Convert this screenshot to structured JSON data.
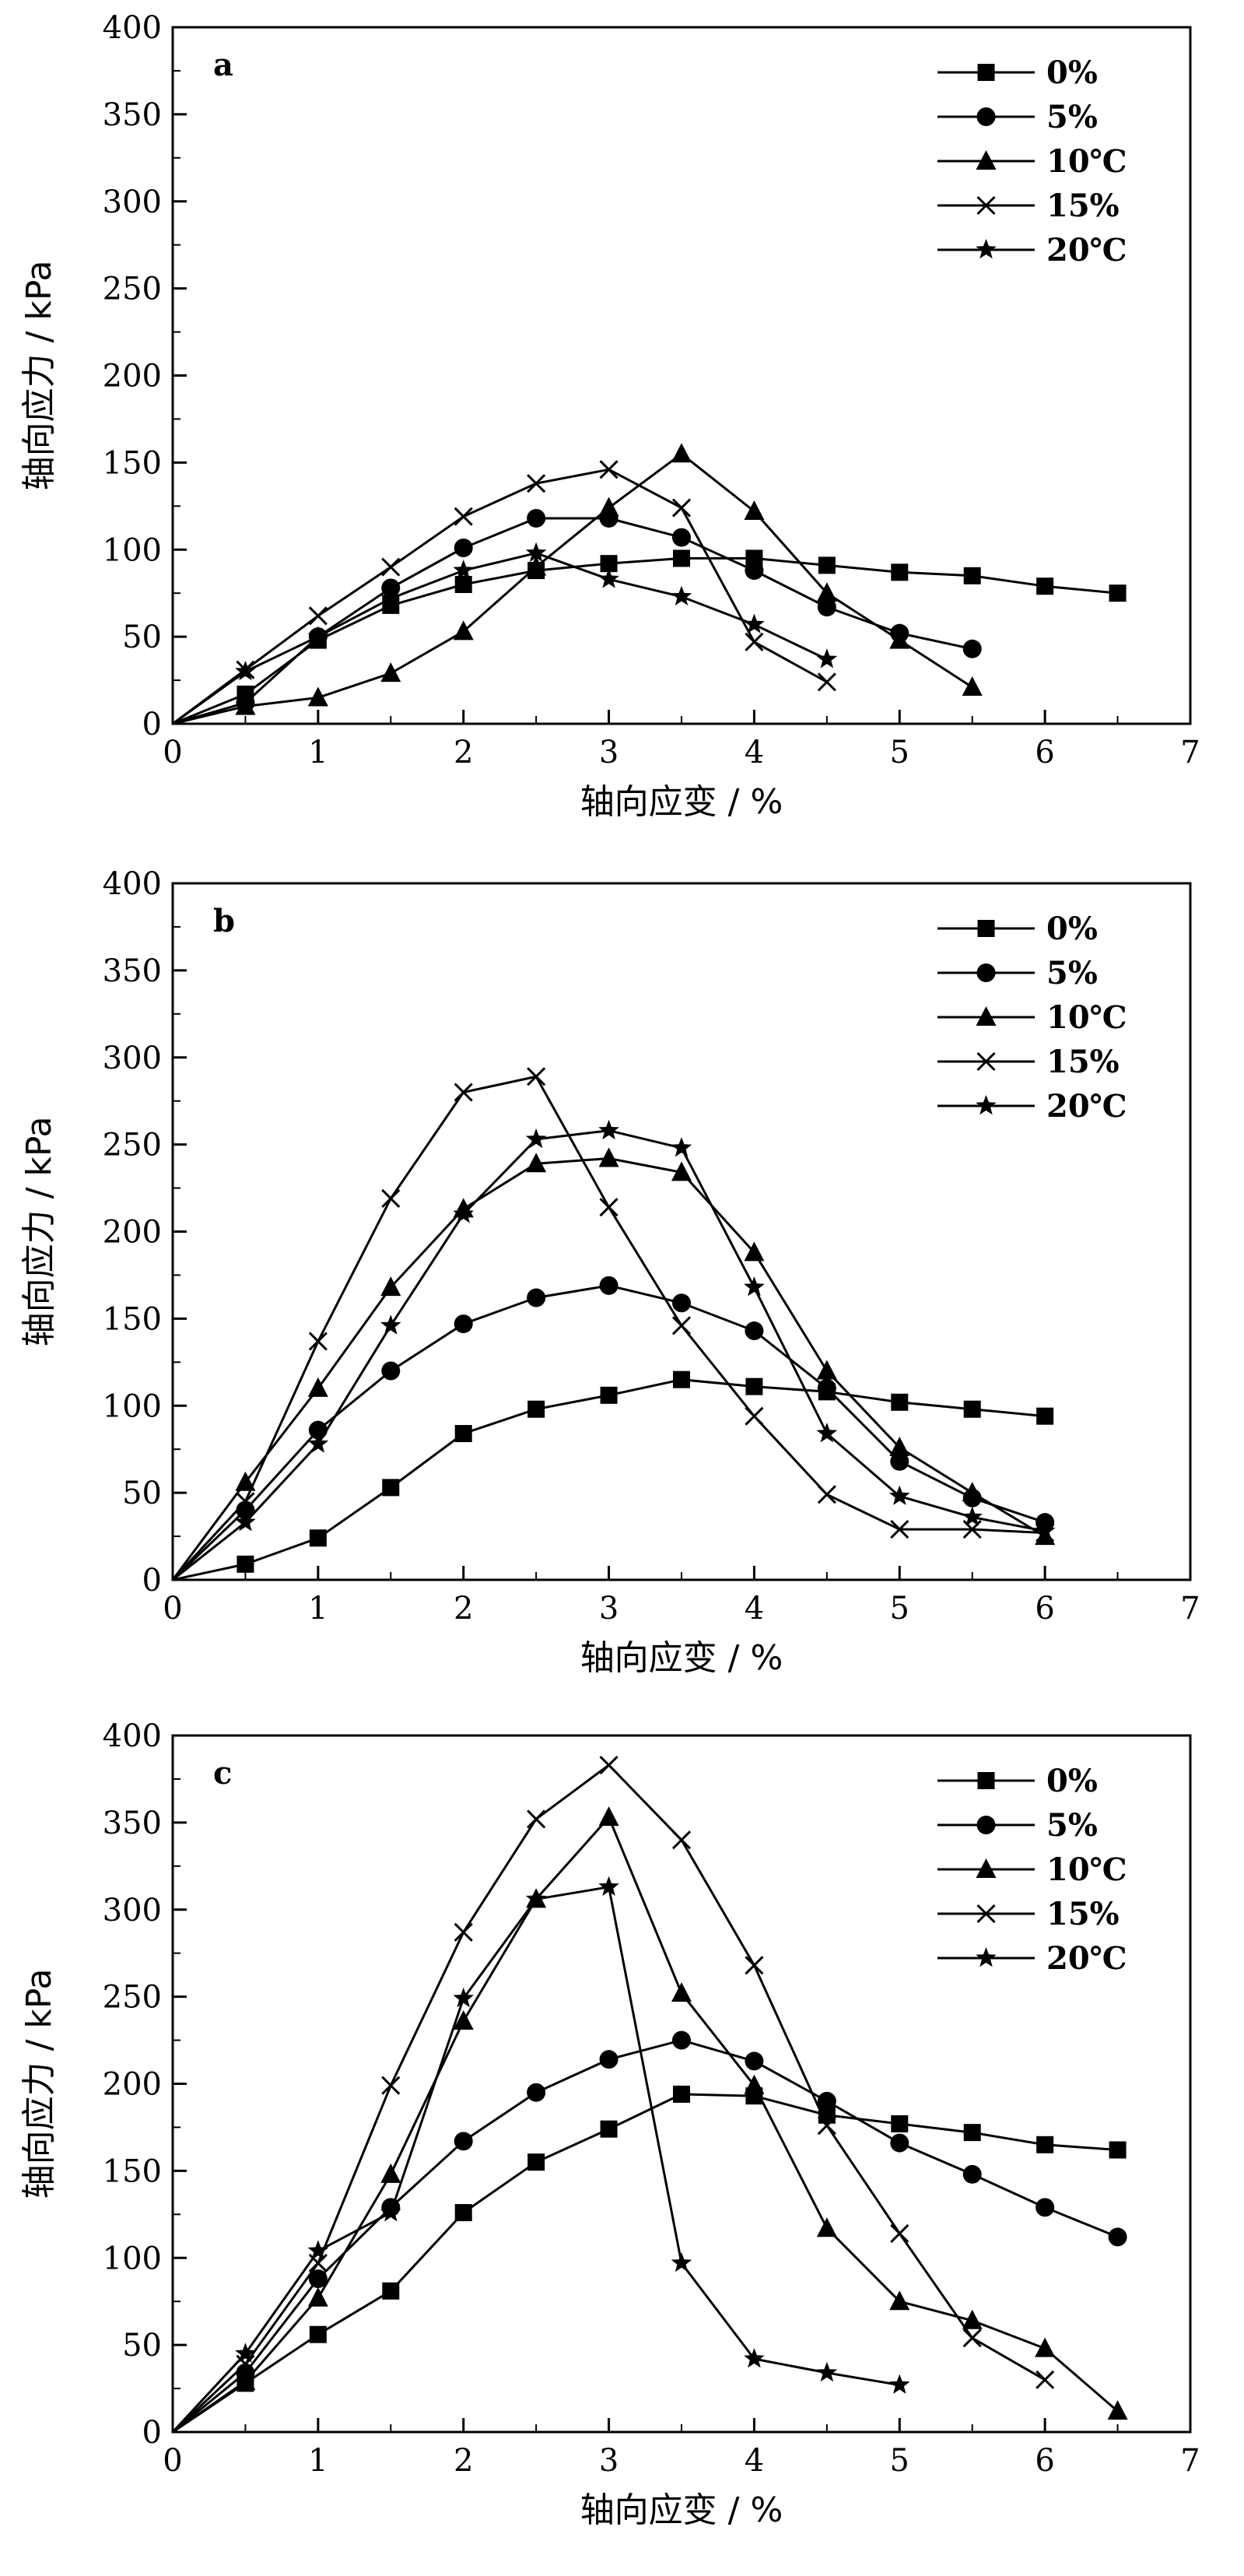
{
  "chart_data": [
    {
      "type": "line",
      "panel_label": "a",
      "xlabel": "轴向应变 / %",
      "ylabel": "轴向应力 / kPa",
      "xlim": [
        0,
        7
      ],
      "ylim": [
        0,
        400
      ],
      "xticks": [
        "0",
        "1",
        "2",
        "3",
        "4",
        "5",
        "6",
        "7"
      ],
      "yticks": [
        "0",
        "50",
        "100",
        "150",
        "200",
        "250",
        "300",
        "350",
        "400"
      ],
      "legend_position": "top-right",
      "series": [
        {
          "name": "0%",
          "marker": "square",
          "x": [
            0,
            0.5,
            1,
            1.5,
            2,
            2.5,
            3,
            3.5,
            4,
            4.5,
            5,
            5.5,
            6,
            6.5
          ],
          "y": [
            0,
            17,
            48,
            68,
            80,
            88,
            92,
            95,
            95,
            91,
            87,
            85,
            79,
            75
          ]
        },
        {
          "name": "5%",
          "marker": "circle",
          "x": [
            0,
            0.5,
            1,
            1.5,
            2,
            2.5,
            3,
            3.5,
            4,
            4.5,
            5,
            5.5
          ],
          "y": [
            0,
            12,
            50,
            78,
            101,
            118,
            118,
            107,
            88,
            67,
            52,
            43
          ]
        },
        {
          "name": "10℃",
          "marker": "triangle",
          "x": [
            0,
            0.5,
            1,
            1.5,
            2,
            2.5,
            3,
            3.5,
            4,
            4.5,
            5,
            5.5
          ],
          "y": [
            0,
            10,
            15,
            29,
            53,
            90,
            124,
            155,
            122,
            75,
            48,
            21
          ]
        },
        {
          "name": "15%",
          "marker": "cross",
          "x": [
            0,
            0.5,
            1,
            1.5,
            2,
            2.5,
            3,
            3.5,
            4,
            4.5
          ],
          "y": [
            0,
            31,
            62,
            90,
            119,
            138,
            146,
            124,
            47,
            24
          ]
        },
        {
          "name": "20℃",
          "marker": "star",
          "x": [
            0,
            0.5,
            1,
            1.5,
            2,
            2.5,
            3,
            3.5,
            4,
            4.5
          ],
          "y": [
            0,
            30,
            50,
            72,
            88,
            98,
            83,
            73,
            57,
            37
          ]
        }
      ]
    },
    {
      "type": "line",
      "panel_label": "b",
      "xlabel": "轴向应变 / %",
      "ylabel": "轴向应力 / kPa",
      "xlim": [
        0,
        7
      ],
      "ylim": [
        0,
        400
      ],
      "xticks": [
        "0",
        "1",
        "2",
        "3",
        "4",
        "5",
        "6",
        "7"
      ],
      "yticks": [
        "0",
        "50",
        "100",
        "150",
        "200",
        "250",
        "300",
        "350",
        "400"
      ],
      "legend_position": "top-right",
      "series": [
        {
          "name": "0%",
          "marker": "square",
          "x": [
            0,
            0.5,
            1,
            1.5,
            2,
            2.5,
            3,
            3.5,
            4,
            4.5,
            5,
            5.5,
            6
          ],
          "y": [
            0,
            9,
            24,
            53,
            84,
            98,
            106,
            115,
            111,
            108,
            102,
            98,
            94
          ]
        },
        {
          "name": "5%",
          "marker": "circle",
          "x": [
            0,
            0.5,
            1,
            1.5,
            2,
            2.5,
            3,
            3.5,
            4,
            4.5,
            5,
            5.5,
            6
          ],
          "y": [
            0,
            40,
            86,
            120,
            147,
            162,
            169,
            159,
            143,
            110,
            68,
            47,
            33
          ]
        },
        {
          "name": "10℃",
          "marker": "triangle",
          "x": [
            0,
            0.5,
            1,
            1.5,
            2,
            2.5,
            3,
            3.5,
            4,
            4.5,
            5,
            5.5,
            6
          ],
          "y": [
            0,
            56,
            110,
            168,
            213,
            239,
            242,
            234,
            188,
            120,
            76,
            50,
            25
          ]
        },
        {
          "name": "15%",
          "marker": "cross",
          "x": [
            0,
            0.5,
            1,
            1.5,
            2,
            2.5,
            3,
            3.5,
            4,
            4.5,
            5,
            5.5,
            6
          ],
          "y": [
            0,
            45,
            137,
            219,
            280,
            289,
            214,
            146,
            94,
            49,
            29,
            29,
            27
          ]
        },
        {
          "name": "20℃",
          "marker": "star",
          "x": [
            0,
            0.5,
            1,
            1.5,
            2,
            2.5,
            3,
            3.5,
            4,
            4.5,
            5,
            5.5,
            6
          ],
          "y": [
            0,
            33,
            78,
            146,
            210,
            253,
            258,
            248,
            168,
            84,
            48,
            36,
            28
          ]
        }
      ]
    },
    {
      "type": "line",
      "panel_label": "c",
      "xlabel": "轴向应变 / %",
      "ylabel": "轴向应力 / kPa",
      "xlim": [
        0,
        7
      ],
      "ylim": [
        0,
        400
      ],
      "xticks": [
        "0",
        "1",
        "2",
        "3",
        "4",
        "5",
        "6",
        "7"
      ],
      "yticks": [
        "0",
        "50",
        "100",
        "150",
        "200",
        "250",
        "300",
        "350",
        "400"
      ],
      "legend_position": "top-right",
      "series": [
        {
          "name": "0%",
          "marker": "square",
          "x": [
            0,
            0.5,
            1,
            1.5,
            2,
            2.5,
            3,
            3.5,
            4,
            4.5,
            5,
            5.5,
            6,
            6.5
          ],
          "y": [
            0,
            28,
            56,
            81,
            126,
            155,
            174,
            194,
            193,
            182,
            177,
            172,
            165,
            162
          ]
        },
        {
          "name": "5%",
          "marker": "circle",
          "x": [
            0,
            0.5,
            1,
            1.5,
            2,
            2.5,
            3,
            3.5,
            4,
            4.5,
            5,
            5.5,
            6,
            6.5
          ],
          "y": [
            0,
            34,
            88,
            129,
            167,
            195,
            214,
            225,
            213,
            190,
            166,
            148,
            129,
            112
          ]
        },
        {
          "name": "10℃",
          "marker": "triangle",
          "x": [
            0,
            0.5,
            1,
            1.5,
            2,
            2.5,
            3,
            3.5,
            4,
            4.5,
            5,
            5.5,
            6,
            6.5
          ],
          "y": [
            0,
            29,
            77,
            148,
            236,
            306,
            353,
            252,
            199,
            117,
            75,
            64,
            48,
            12
          ]
        },
        {
          "name": "15%",
          "marker": "cross",
          "x": [
            0,
            0.5,
            1,
            1.5,
            2,
            2.5,
            3,
            3.5,
            4,
            4.5,
            5,
            5.5,
            6
          ],
          "y": [
            0,
            39,
            97,
            199,
            287,
            352,
            383,
            340,
            268,
            176,
            114,
            54,
            30
          ]
        },
        {
          "name": "20℃",
          "marker": "star",
          "x": [
            0,
            0.5,
            1,
            1.5,
            2,
            2.5,
            3,
            3.5,
            4,
            4.5,
            5
          ],
          "y": [
            0,
            45,
            104,
            126,
            249,
            306,
            313,
            97,
            42,
            34,
            27
          ]
        }
      ]
    }
  ]
}
